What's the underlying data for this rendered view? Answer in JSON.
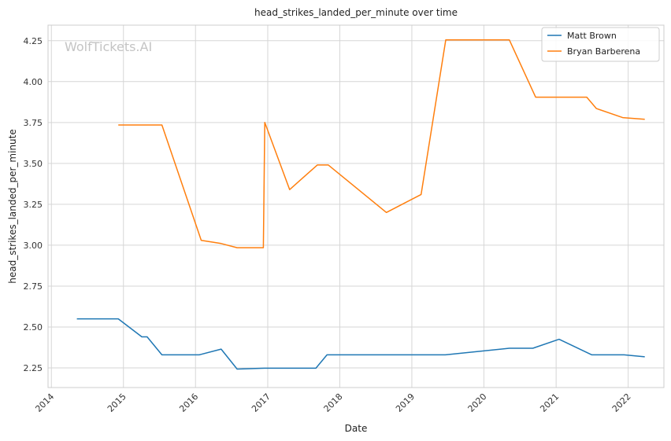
{
  "chart_data": {
    "type": "line",
    "title": "head_strikes_landed_per_minute over time",
    "xlabel": "Date",
    "ylabel": "head_strikes_landed_per_minute",
    "watermark": "WolfTickets.AI",
    "x_type": "date",
    "xlim": [
      "2013-12-15",
      "2022-07-01"
    ],
    "ylim": [
      2.13,
      4.345
    ],
    "xticks": [
      "2014",
      "2015",
      "2016",
      "2017",
      "2018",
      "2019",
      "2020",
      "2021",
      "2022"
    ],
    "yticks": [
      "2.25",
      "2.50",
      "2.75",
      "3.00",
      "3.25",
      "3.50",
      "3.75",
      "4.00",
      "4.25"
    ],
    "grid": true,
    "legend_position": "top-right",
    "series": [
      {
        "name": "Matt Brown",
        "color": "#1f77b4",
        "points": [
          [
            "2014-05-10",
            2.55
          ],
          [
            "2014-12-06",
            2.55
          ],
          [
            "2015-04-04",
            2.44
          ],
          [
            "2015-05-01",
            2.44
          ],
          [
            "2015-07-15",
            2.33
          ],
          [
            "2016-01-20",
            2.33
          ],
          [
            "2016-05-10",
            2.365
          ],
          [
            "2016-07-30",
            2.243
          ],
          [
            "2016-12-15",
            2.248
          ],
          [
            "2017-09-02",
            2.248
          ],
          [
            "2017-10-28",
            2.33
          ],
          [
            "2019-06-20",
            2.33
          ],
          [
            "2020-05-09",
            2.37
          ],
          [
            "2020-09-05",
            2.37
          ],
          [
            "2021-01-16",
            2.425
          ],
          [
            "2021-07-01",
            2.33
          ],
          [
            "2021-12-11",
            2.33
          ],
          [
            "2022-03-26",
            2.318
          ]
        ]
      },
      {
        "name": "Bryan Barberena",
        "color": "#ff7f0e",
        "points": [
          [
            "2014-12-06",
            3.735
          ],
          [
            "2015-07-15",
            3.735
          ],
          [
            "2016-01-30",
            3.03
          ],
          [
            "2016-05-10",
            3.01
          ],
          [
            "2016-07-30",
            2.985
          ],
          [
            "2016-12-10",
            2.985
          ],
          [
            "2016-12-17",
            3.75
          ],
          [
            "2017-04-22",
            3.34
          ],
          [
            "2017-09-09",
            3.49
          ],
          [
            "2017-11-04",
            3.49
          ],
          [
            "2018-08-25",
            3.2
          ],
          [
            "2019-02-17",
            3.31
          ],
          [
            "2019-06-22",
            4.255
          ],
          [
            "2020-05-09",
            4.255
          ],
          [
            "2020-09-19",
            3.905
          ],
          [
            "2021-06-05",
            3.905
          ],
          [
            "2021-07-24",
            3.835
          ],
          [
            "2021-12-04",
            3.78
          ],
          [
            "2022-03-26",
            3.77
          ]
        ]
      }
    ]
  }
}
